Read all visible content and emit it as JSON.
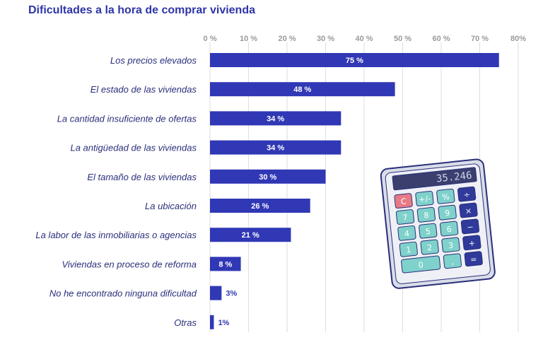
{
  "chart_data": {
    "type": "bar",
    "orientation": "horizontal",
    "title": "Dificultades a la hora de comprar vivienda",
    "categories": [
      "Los precios elevados",
      "El estado de las viviendas",
      "La cantidad insuficiente de ofertas",
      "La antigüedad de las viviendas",
      "El tamaño de las viviendas",
      "La ubicación",
      "La labor de las inmobiliarias o agencias",
      "Viviendas en proceso de reforma",
      "No he encontrado ninguna dificultad",
      "Otras"
    ],
    "values": [
      75,
      48,
      34,
      34,
      30,
      26,
      21,
      8,
      3,
      1
    ],
    "data_labels": [
      "75 %",
      "48 %",
      "34 %",
      "34 %",
      "30 %",
      "26 %",
      "21 %",
      "8 %",
      "3%",
      "1%"
    ],
    "xlim": [
      0,
      80
    ],
    "x_ticks": [
      "0 %",
      "10 %",
      "20 %",
      "30 %",
      "40 %",
      "50 %",
      "60 %",
      "70 %",
      "80%"
    ],
    "axis_position": "top",
    "grid": true,
    "colors": {
      "bar": "#3038b5",
      "title": "#2e35a8",
      "label": "#2a2f7a"
    }
  },
  "decoration": {
    "calculator_display": "35.246",
    "calculator_keys": [
      "C",
      "+/-",
      "%",
      "÷",
      "7",
      "8",
      "9",
      "×",
      "4",
      "5",
      "6",
      "−",
      "1",
      "2",
      "3",
      "+",
      "0",
      ",",
      "="
    ]
  }
}
